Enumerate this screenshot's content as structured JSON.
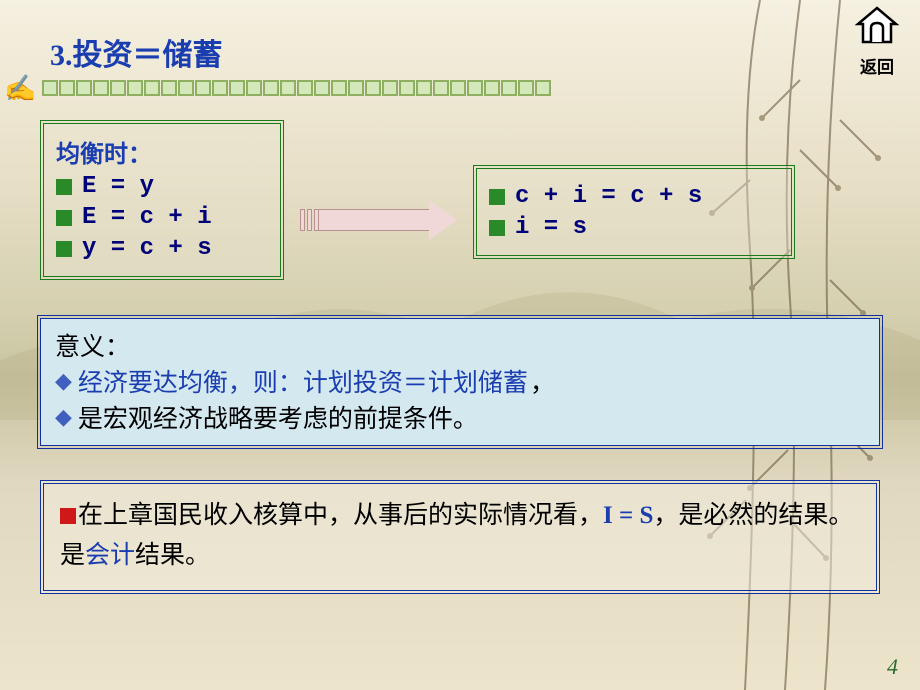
{
  "colors": {
    "title": "#1a3db0",
    "box_border_green": "#1a7a1a",
    "box_border_blue": "#1030a0",
    "bullet_green": "#2a8a2a",
    "text_navy": "#00007a",
    "red": "#d01818",
    "black": "#000000",
    "meaning_bg": "#d4e8f0",
    "diamond": "#4060c0",
    "note_is_blue": "#1a3db0"
  },
  "title": "3.投资＝储蓄",
  "back_button": {
    "label": "返回"
  },
  "box_equilibrium": {
    "heading": "均衡时：",
    "items": [
      "E = y",
      "E = c + i",
      "y = c + s"
    ]
  },
  "box_result": {
    "items": [
      "c + i = c + s",
      "i = s"
    ]
  },
  "box_meaning": {
    "heading": "意义：",
    "line1_a": "经济要达均衡，则：计划投资＝计划储蓄",
    "line1_b": "，",
    "line2": "是宏观经济战略要考虑的前提条件。"
  },
  "box_note": {
    "part1": "在上章国民收入核算中，从事后的实际情况看，",
    "is_eq": "I = S",
    "part2": "，是必然的结果。是",
    "acct": "会计",
    "part3": "结果。"
  },
  "page_number": "4"
}
